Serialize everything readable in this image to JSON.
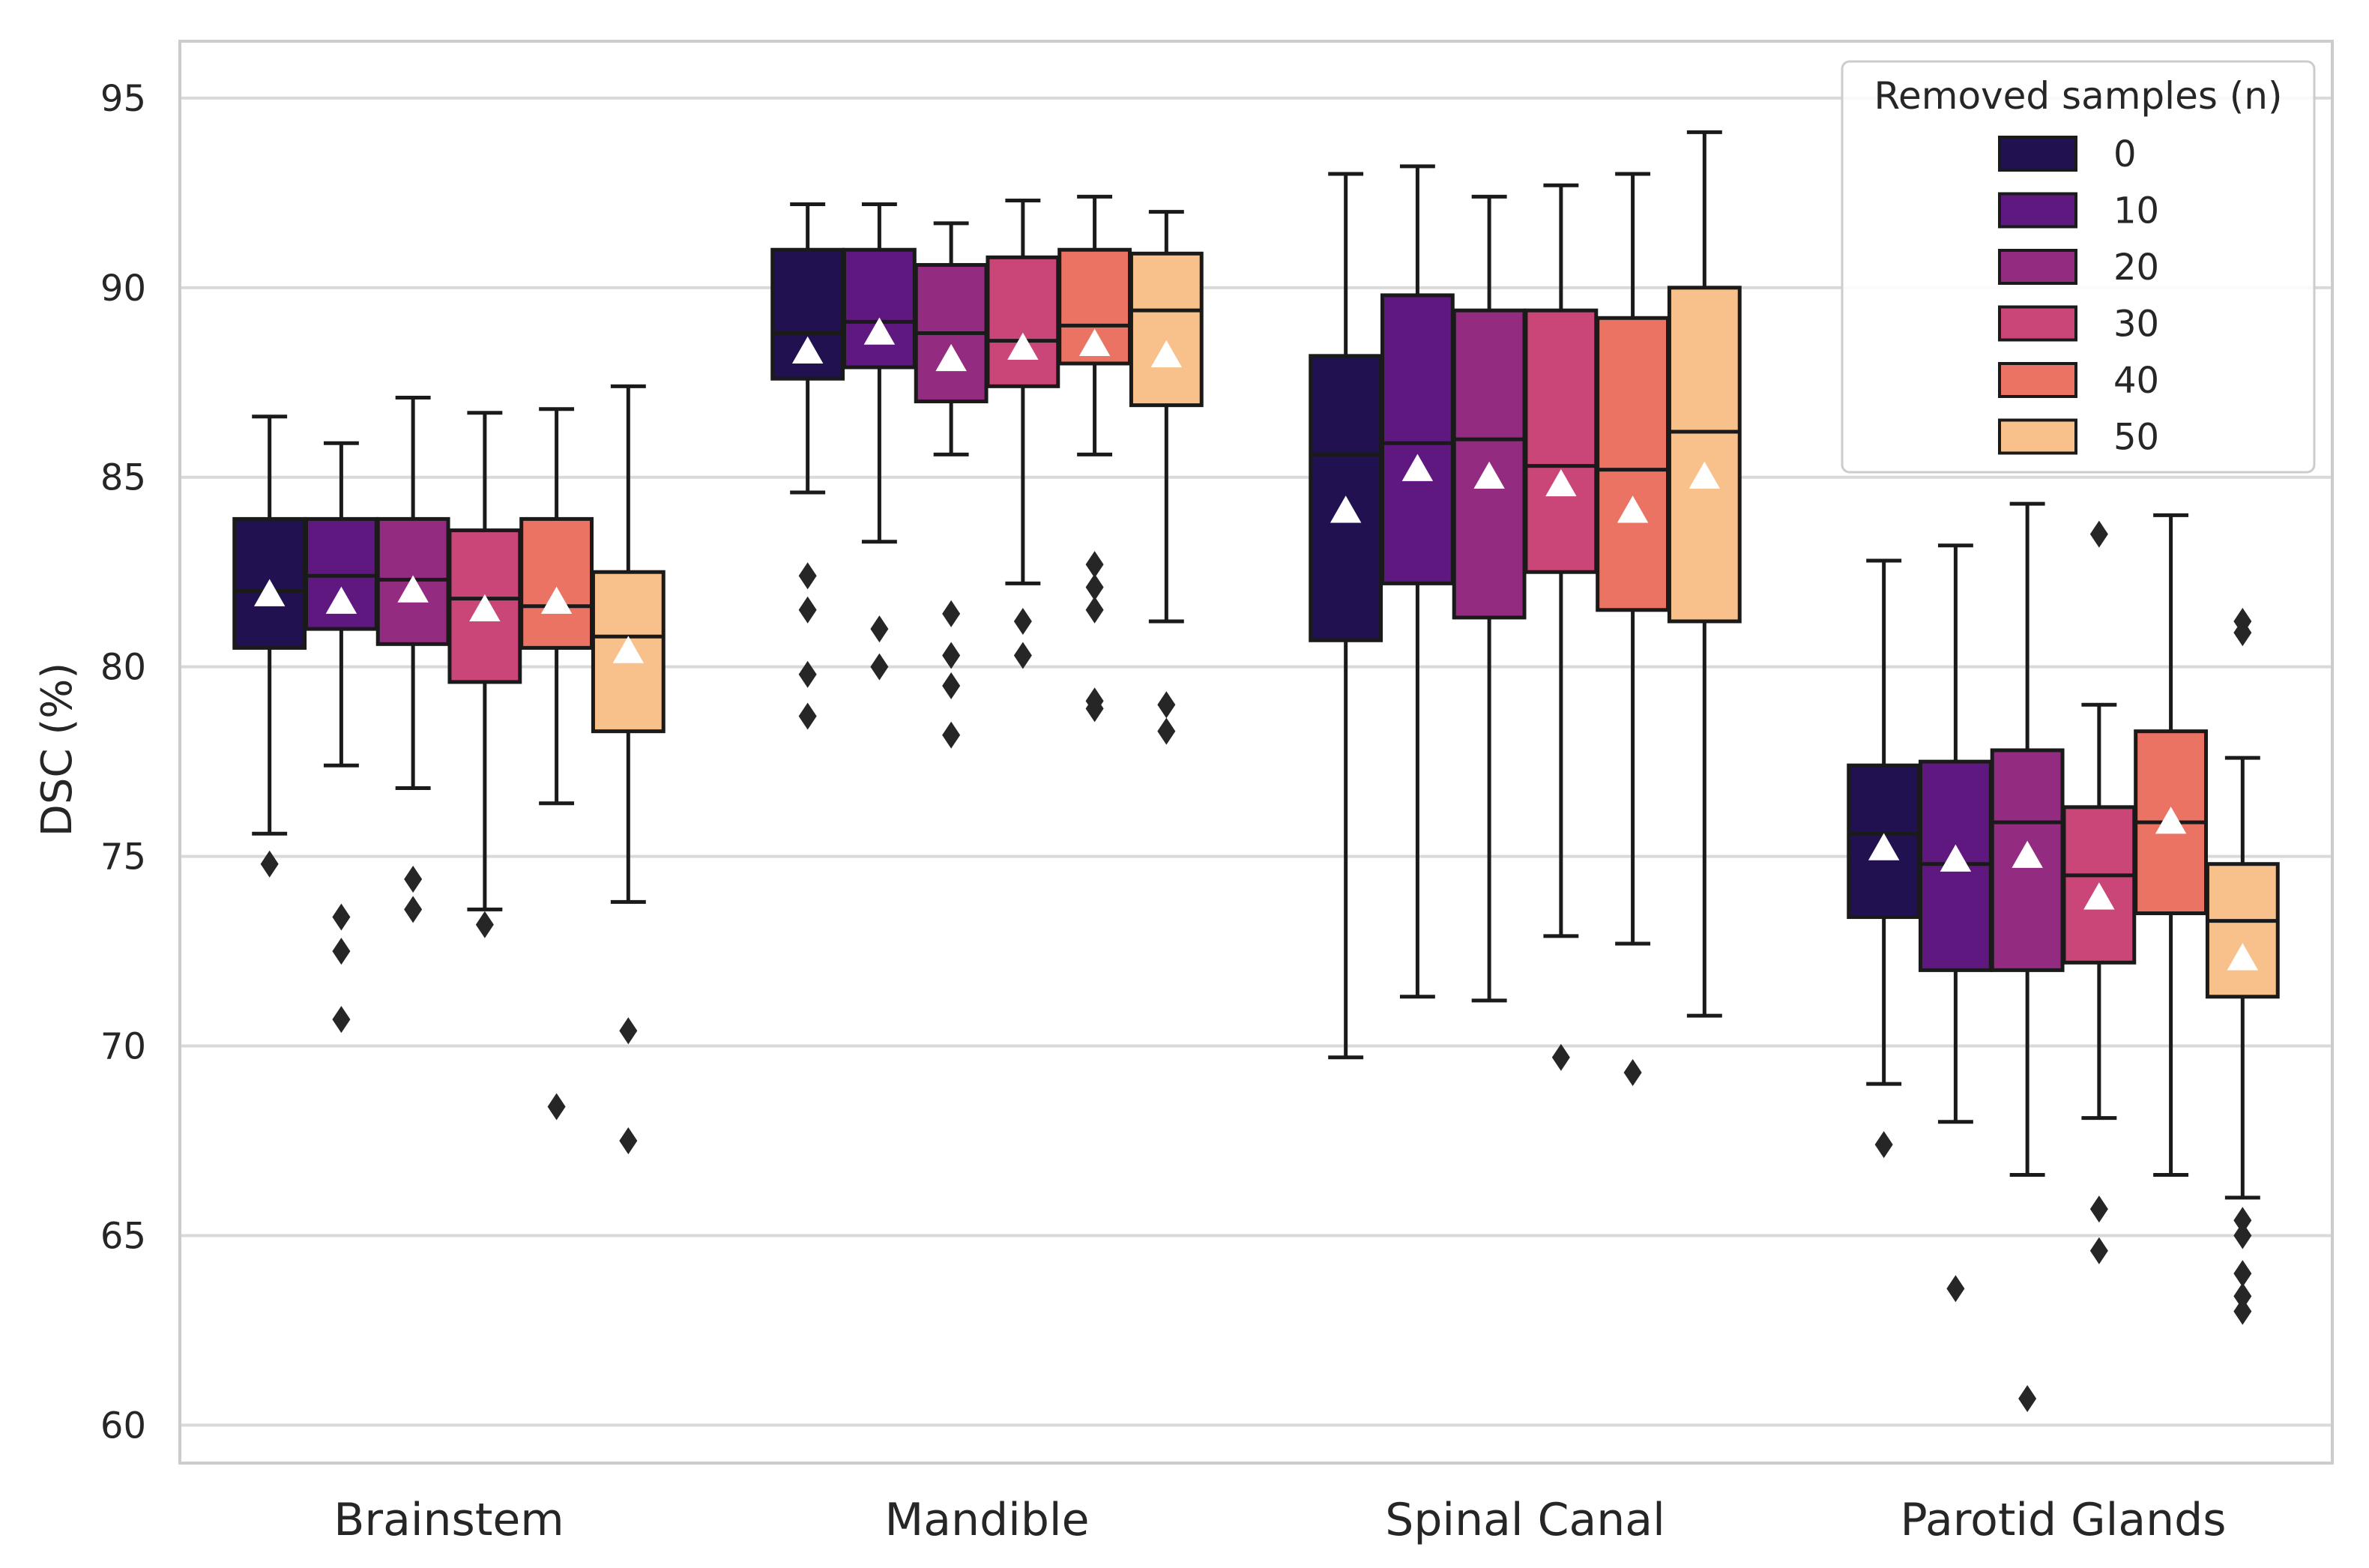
{
  "chart_data": {
    "type": "box",
    "title": "",
    "xlabel": "",
    "ylabel": "DSC (%)",
    "ylim": [
      59,
      96.5
    ],
    "yticks": [
      60,
      65,
      70,
      75,
      80,
      85,
      90,
      95
    ],
    "grid": "horizontal",
    "legend": {
      "title": "Removed samples (n)",
      "position": "top-right",
      "entries": [
        "0",
        "10",
        "20",
        "30",
        "40",
        "50"
      ]
    },
    "colors": [
      "#221150",
      "#5f187f",
      "#932b80",
      "#cb4678",
      "#ea7363",
      "#f8c08a"
    ],
    "categories": [
      "Brainstem",
      "Mandible",
      "Spinal Canal",
      "Parotid Glands"
    ],
    "series": [
      {
        "name": "0",
        "boxes": [
          {
            "whislo": 75.6,
            "q1": 80.5,
            "med": 82.0,
            "q3": 83.9,
            "whishi": 86.6,
            "mean": 81.9,
            "fliers": [
              74.8
            ]
          },
          {
            "whislo": 84.6,
            "q1": 87.6,
            "med": 88.8,
            "q3": 91.0,
            "whishi": 92.2,
            "mean": 88.3,
            "fliers": [
              82.4,
              81.5,
              79.8,
              78.7
            ]
          },
          {
            "whislo": 69.7,
            "q1": 80.7,
            "med": 85.6,
            "q3": 88.2,
            "whishi": 93.0,
            "mean": 84.1,
            "fliers": []
          },
          {
            "whislo": 69.0,
            "q1": 73.4,
            "med": 75.6,
            "q3": 77.4,
            "whishi": 82.8,
            "mean": 75.2,
            "fliers": [
              67.4
            ]
          }
        ]
      },
      {
        "name": "10",
        "boxes": [
          {
            "whislo": 77.4,
            "q1": 81.0,
            "med": 82.4,
            "q3": 83.9,
            "whishi": 85.9,
            "mean": 81.7,
            "fliers": [
              73.4,
              72.5,
              70.7
            ]
          },
          {
            "whislo": 83.3,
            "q1": 87.9,
            "med": 89.1,
            "q3": 91.0,
            "whishi": 92.2,
            "mean": 88.8,
            "fliers": [
              81.0,
              80.0
            ]
          },
          {
            "whislo": 71.3,
            "q1": 82.2,
            "med": 85.9,
            "q3": 89.8,
            "whishi": 93.2,
            "mean": 85.2,
            "fliers": []
          },
          {
            "whislo": 68.0,
            "q1": 72.0,
            "med": 74.8,
            "q3": 77.5,
            "whishi": 83.2,
            "mean": 74.9,
            "fliers": [
              63.6
            ]
          }
        ]
      },
      {
        "name": "20",
        "boxes": [
          {
            "whislo": 76.8,
            "q1": 80.6,
            "med": 82.3,
            "q3": 83.9,
            "whishi": 87.1,
            "mean": 82.0,
            "fliers": [
              74.4,
              73.6
            ]
          },
          {
            "whislo": 85.6,
            "q1": 87.0,
            "med": 88.8,
            "q3": 90.6,
            "whishi": 91.7,
            "mean": 88.1,
            "fliers": [
              81.4,
              80.3,
              79.5,
              78.2
            ]
          },
          {
            "whislo": 71.2,
            "q1": 81.3,
            "med": 86.0,
            "q3": 89.4,
            "whishi": 92.4,
            "mean": 85.0,
            "fliers": []
          },
          {
            "whislo": 66.6,
            "q1": 72.0,
            "med": 75.9,
            "q3": 77.8,
            "whishi": 84.3,
            "mean": 75.0,
            "fliers": [
              60.7
            ]
          }
        ]
      },
      {
        "name": "30",
        "boxes": [
          {
            "whislo": 73.6,
            "q1": 79.6,
            "med": 81.8,
            "q3": 83.6,
            "whishi": 86.7,
            "mean": 81.5,
            "fliers": [
              73.2
            ]
          },
          {
            "whislo": 82.2,
            "q1": 87.4,
            "med": 88.6,
            "q3": 90.8,
            "whishi": 92.3,
            "mean": 88.4,
            "fliers": [
              81.2,
              80.3
            ]
          },
          {
            "whislo": 72.9,
            "q1": 82.5,
            "med": 85.3,
            "q3": 89.4,
            "whishi": 92.7,
            "mean": 84.8,
            "fliers": [
              69.7
            ]
          },
          {
            "whislo": 68.1,
            "q1": 72.2,
            "med": 74.5,
            "q3": 76.3,
            "whishi": 79.0,
            "mean": 73.9,
            "fliers": [
              83.5,
              65.7,
              64.6
            ]
          }
        ]
      },
      {
        "name": "40",
        "boxes": [
          {
            "whislo": 76.4,
            "q1": 80.5,
            "med": 81.6,
            "q3": 83.9,
            "whishi": 86.8,
            "mean": 81.7,
            "fliers": [
              68.4
            ]
          },
          {
            "whislo": 85.6,
            "q1": 88.0,
            "med": 89.0,
            "q3": 91.0,
            "whishi": 92.4,
            "mean": 88.5,
            "fliers": [
              82.7,
              82.1,
              81.5,
              79.1,
              78.9
            ]
          },
          {
            "whislo": 72.7,
            "q1": 81.5,
            "med": 85.2,
            "q3": 89.2,
            "whishi": 93.0,
            "mean": 84.1,
            "fliers": [
              69.3
            ]
          },
          {
            "whislo": 66.6,
            "q1": 73.5,
            "med": 75.9,
            "q3": 78.3,
            "whishi": 84.0,
            "mean": 75.9,
            "fliers": []
          }
        ]
      },
      {
        "name": "50",
        "boxes": [
          {
            "whislo": 73.8,
            "q1": 78.3,
            "med": 80.8,
            "q3": 82.5,
            "whishi": 87.4,
            "mean": 80.4,
            "fliers": [
              70.4,
              67.5
            ]
          },
          {
            "whislo": 81.2,
            "q1": 86.9,
            "med": 89.4,
            "q3": 90.9,
            "whishi": 92.0,
            "mean": 88.2,
            "fliers": [
              79.0,
              78.3
            ]
          },
          {
            "whislo": 70.8,
            "q1": 81.2,
            "med": 86.2,
            "q3": 90.0,
            "whishi": 94.1,
            "mean": 85.0,
            "fliers": []
          },
          {
            "whislo": 66.0,
            "q1": 71.3,
            "med": 73.3,
            "q3": 74.8,
            "whishi": 77.6,
            "mean": 72.3,
            "fliers": [
              81.2,
              80.9,
              65.4,
              65.0,
              64.0,
              63.4,
              63.0
            ]
          }
        ]
      }
    ]
  }
}
